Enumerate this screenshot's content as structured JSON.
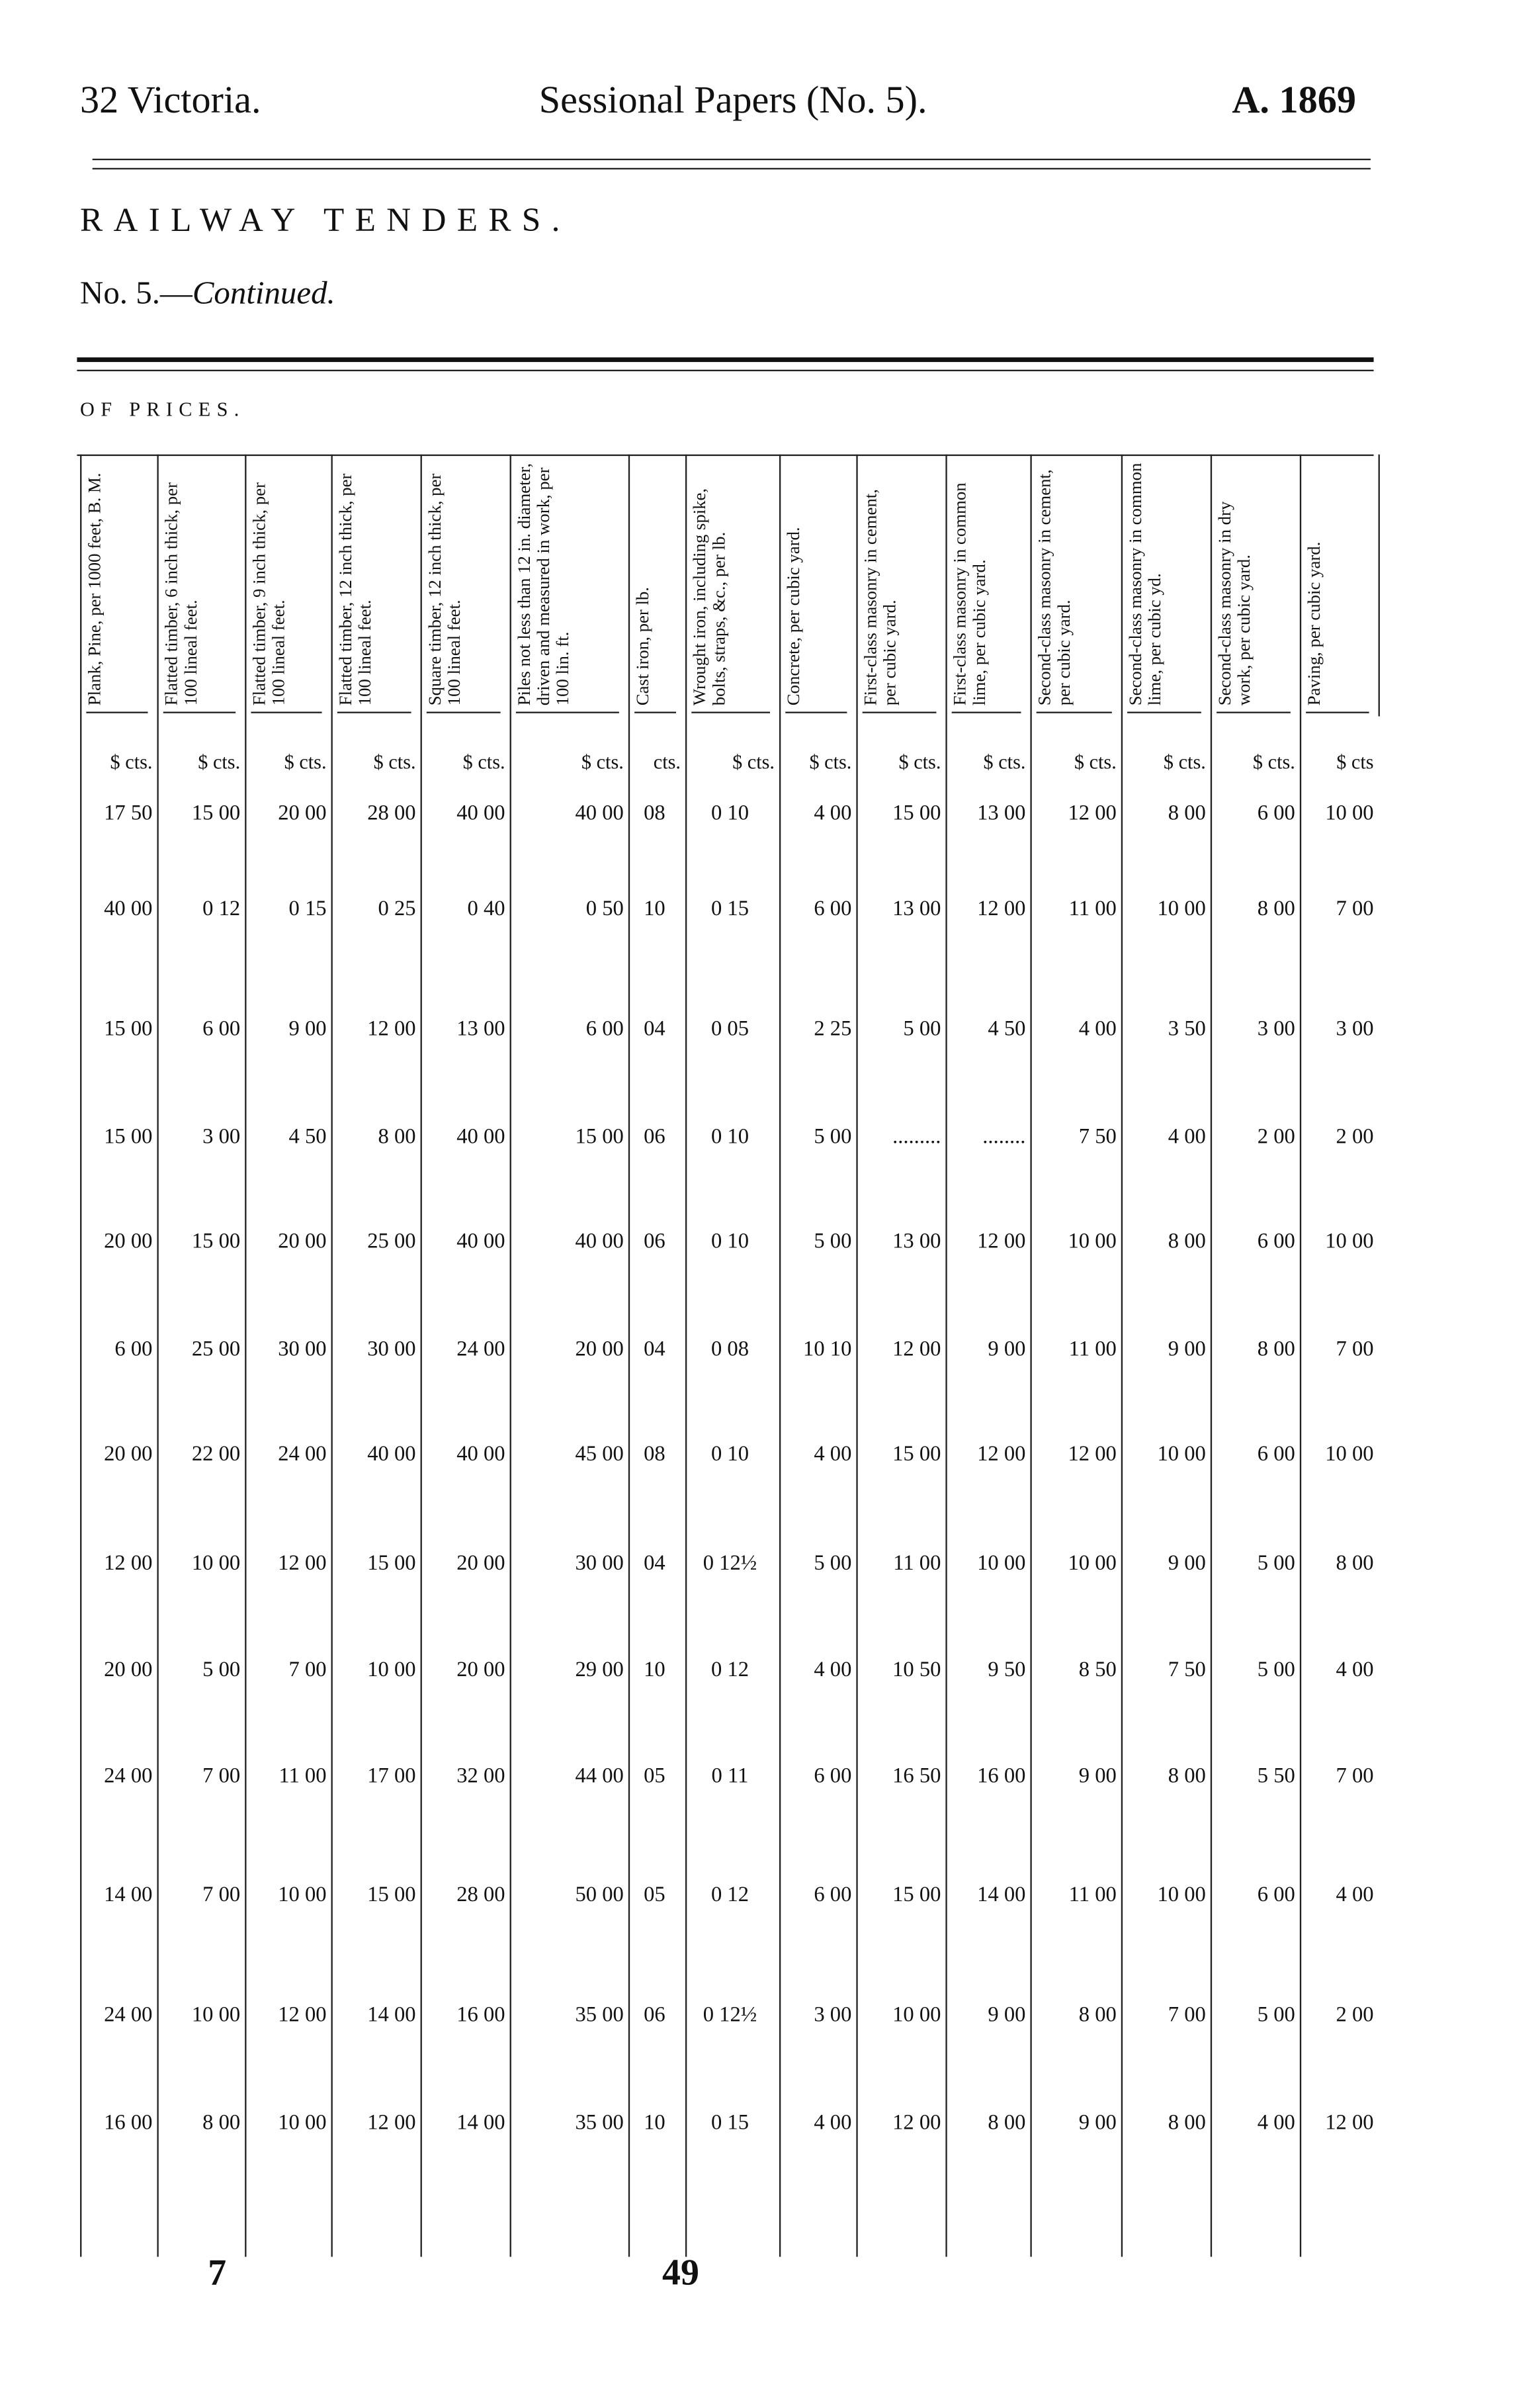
{
  "header": {
    "left": "32 Victoria.",
    "center": "Sessional Papers (No. 5).",
    "right": "A. 1869"
  },
  "title": "RAILWAY TENDERS.",
  "subtitle": {
    "prefix": "No. 5.—",
    "italic": "Continued."
  },
  "section": "OF PRICES.",
  "table": {
    "columns": [
      {
        "label": "Plank, Pine, per 1000 feet, B. M.",
        "unit": "$ cts."
      },
      {
        "label": "Flatted timber, 6 inch thick, per 100 lineal feet.",
        "unit": "$ cts."
      },
      {
        "label": "Flatted timber, 9 inch thick, per 100 lineal feet.",
        "unit": "$ cts."
      },
      {
        "label": "Flatted timber, 12 inch thick, per 100 lineal feet.",
        "unit": "$ cts."
      },
      {
        "label": "Square timber, 12 inch thick, per 100 lineal feet.",
        "unit": "$ cts."
      },
      {
        "label": "Piles not less than 12 in. diameter, driven and measured in work, per 100 lin. ft.",
        "unit": "$ cts."
      },
      {
        "label": "Cast iron, per lb.",
        "unit": "cts."
      },
      {
        "label": "Wrought iron, including spike, bolts, straps, &c., per lb.",
        "unit": "$ cts."
      },
      {
        "label": "Concrete, per cubic yard.",
        "unit": "$ cts."
      },
      {
        "label": "First-class masonry in cement, per cubic yard.",
        "unit": "$ cts."
      },
      {
        "label": "First-class masonry in common lime, per cubic yard.",
        "unit": "$ cts."
      },
      {
        "label": "Second-class masonry in cement, per cubic yard.",
        "unit": "$ cts."
      },
      {
        "label": "Second-class masonry in common lime, per cubic yd.",
        "unit": "$ cts."
      },
      {
        "label": "Second-class masonry in dry work, per cubic yard.",
        "unit": "$ cts."
      },
      {
        "label": "Paving, per cubic yard.",
        "unit": "$ cts"
      }
    ],
    "rows": [
      [
        "17 50",
        "15 00",
        "20 00",
        "28 00",
        "40 00",
        "40 00",
        "08",
        "0 10",
        "4 00",
        "15 00",
        "13 00",
        "12 00",
        "8 00",
        "6 00",
        "10 00"
      ],
      [
        "40 00",
        "0 12",
        "0 15",
        "0 25",
        "0 40",
        "0 50",
        "10",
        "0 15",
        "6 00",
        "13 00",
        "12 00",
        "11 00",
        "10 00",
        "8 00",
        "7 00"
      ],
      [
        "15 00",
        "6 00",
        "9 00",
        "12 00",
        "13 00",
        "6 00",
        "04",
        "0 05",
        "2 25",
        "5 00",
        "4 50",
        "4 00",
        "3 50",
        "3 00",
        "3 00"
      ],
      [
        "15 00",
        "3 00",
        "4 50",
        "8 00",
        "40 00",
        "15 00",
        "06",
        "0 10",
        "5 00",
        ".........",
        "........",
        "7 50",
        "4 00",
        "2 00",
        "2 00"
      ],
      [
        "20 00",
        "15 00",
        "20 00",
        "25 00",
        "40 00",
        "40 00",
        "06",
        "0 10",
        "5 00",
        "13 00",
        "12 00",
        "10 00",
        "8 00",
        "6 00",
        "10 00"
      ],
      [
        "6 00",
        "25 00",
        "30 00",
        "30 00",
        "24 00",
        "20 00",
        "04",
        "0 08",
        "10 10",
        "12 00",
        "9 00",
        "11 00",
        "9 00",
        "8 00",
        "7 00"
      ],
      [
        "20 00",
        "22 00",
        "24 00",
        "40 00",
        "40 00",
        "45 00",
        "08",
        "0 10",
        "4 00",
        "15 00",
        "12 00",
        "12 00",
        "10 00",
        "6 00",
        "10 00"
      ],
      [
        "12 00",
        "10 00",
        "12 00",
        "15 00",
        "20 00",
        "30 00",
        "04",
        "0 12½",
        "5 00",
        "11 00",
        "10 00",
        "10 00",
        "9 00",
        "5 00",
        "8 00"
      ],
      [
        "20 00",
        "5 00",
        "7 00",
        "10 00",
        "20 00",
        "29 00",
        "10",
        "0 12",
        "4 00",
        "10 50",
        "9 50",
        "8 50",
        "7 50",
        "5 00",
        "4 00"
      ],
      [
        "24 00",
        "7 00",
        "11 00",
        "17 00",
        "32 00",
        "44 00",
        "05",
        "0 11",
        "6 00",
        "16 50",
        "16 00",
        "9 00",
        "8 00",
        "5 50",
        "7 00"
      ],
      [
        "14 00",
        "7 00",
        "10 00",
        "15 00",
        "28 00",
        "50 00",
        "05",
        "0 12",
        "6 00",
        "15 00",
        "14 00",
        "11 00",
        "10 00",
        "6 00",
        "4 00"
      ],
      [
        "24 00",
        "10 00",
        "12 00",
        "14 00",
        "16 00",
        "35 00",
        "06",
        "0 12½",
        "3 00",
        "10 00",
        "9 00",
        "8 00",
        "7 00",
        "5 00",
        "2 00"
      ],
      [
        "16 00",
        "8 00",
        "10 00",
        "12 00",
        "14 00",
        "35 00",
        "10",
        "0 15",
        "4 00",
        "12 00",
        "8 00",
        "9 00",
        "8 00",
        "4 00",
        "12 00"
      ]
    ]
  },
  "footer": {
    "left": "7",
    "center": "49"
  }
}
